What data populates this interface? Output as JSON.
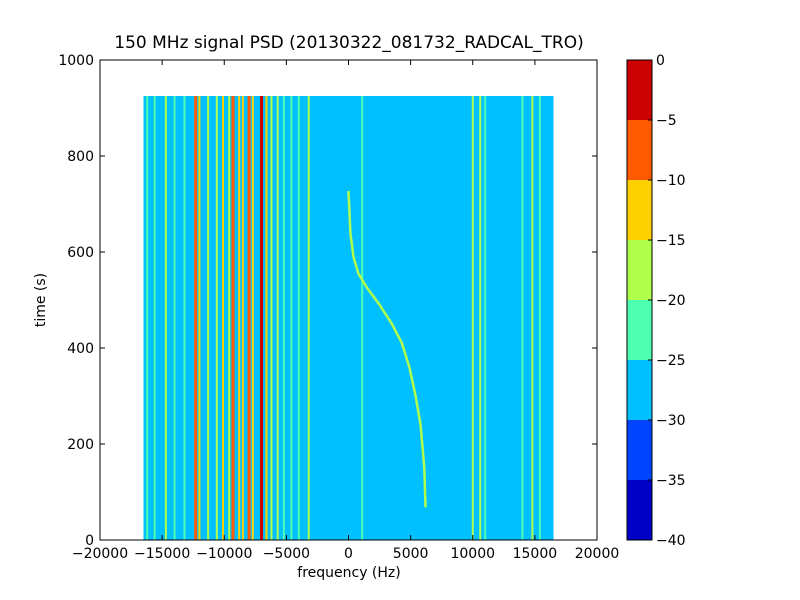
{
  "chart_data": {
    "type": "heatmap",
    "title": "150 MHz signal PSD (20130322_081732_RADCAL_TRO)",
    "xlabel": "frequency (Hz)",
    "ylabel": "time (s)",
    "xlim": [
      -20000,
      20000
    ],
    "ylim": [
      0,
      1000
    ],
    "xticks": [
      -20000,
      -15000,
      -10000,
      -5000,
      0,
      5000,
      10000,
      15000,
      20000
    ],
    "yticks": [
      0,
      200,
      400,
      600,
      800,
      1000
    ],
    "data_extent": {
      "x": [
        -16500,
        16500
      ],
      "t": [
        0,
        925
      ]
    },
    "colorbar": {
      "levels": [
        -40,
        -35,
        -30,
        -25,
        -20,
        -15,
        -10,
        -5,
        0
      ],
      "colors": [
        "#0000c8",
        "#0044ff",
        "#00c0ff",
        "#4dffb0",
        "#b0ff4d",
        "#ffd000",
        "#ff5a00",
        "#cc0000"
      ],
      "ticks": [
        0,
        -5,
        -10,
        -15,
        -20,
        -25,
        -30,
        -35,
        -40
      ]
    },
    "background_level_db": -27,
    "vertical_lines": [
      {
        "x": -16200,
        "db": -22
      },
      {
        "x": -15600,
        "db": -22
      },
      {
        "x": -14700,
        "db": -20
      },
      {
        "x": -14000,
        "db": -22
      },
      {
        "x": -13200,
        "db": -21
      },
      {
        "x": -12300,
        "db": -7
      },
      {
        "x": -12000,
        "db": -13
      },
      {
        "x": -11300,
        "db": -18
      },
      {
        "x": -10600,
        "db": -16
      },
      {
        "x": -10100,
        "db": -13
      },
      {
        "x": -9600,
        "db": -18
      },
      {
        "x": -9300,
        "db": -8
      },
      {
        "x": -8800,
        "db": -15
      },
      {
        "x": -8500,
        "db": -12
      },
      {
        "x": -8000,
        "db": -7
      },
      {
        "x": -7700,
        "db": -14
      },
      {
        "x": -7000,
        "db": -3
      },
      {
        "x": -6600,
        "db": -12
      },
      {
        "x": -6200,
        "db": -17
      },
      {
        "x": -5700,
        "db": -20
      },
      {
        "x": -5200,
        "db": -21
      },
      {
        "x": -4600,
        "db": -22
      },
      {
        "x": -4000,
        "db": -22
      },
      {
        "x": -3200,
        "db": -18
      },
      {
        "x": 1100,
        "db": -21
      },
      {
        "x": 10000,
        "db": -20
      },
      {
        "x": 10600,
        "db": -19
      },
      {
        "x": 11000,
        "db": -22
      },
      {
        "x": 14000,
        "db": -22
      },
      {
        "x": 14800,
        "db": -19
      },
      {
        "x": 15400,
        "db": -23
      }
    ],
    "trace": {
      "db": -18,
      "points": [
        [
          0,
          725
        ],
        [
          50,
          700
        ],
        [
          150,
          640
        ],
        [
          400,
          590
        ],
        [
          800,
          555
        ],
        [
          1500,
          525
        ],
        [
          2500,
          490
        ],
        [
          3500,
          450
        ],
        [
          4300,
          410
        ],
        [
          4900,
          360
        ],
        [
          5400,
          300
        ],
        [
          5800,
          240
        ],
        [
          6100,
          150
        ],
        [
          6200,
          70
        ]
      ]
    }
  }
}
